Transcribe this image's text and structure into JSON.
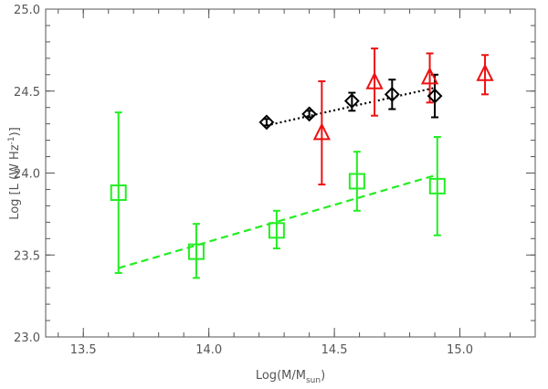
{
  "chart_data": {
    "type": "scatter",
    "title": "",
    "xlabel": "Log(M/M",
    "xlabel_sub": "sun",
    "xlabel_close": ")",
    "ylabel": "Log [L (W Hz",
    "ylabel_sup": "-1",
    "ylabel_close": ")]",
    "xlim": [
      13.35,
      15.3
    ],
    "ylim": [
      23.0,
      25.0
    ],
    "x_ticks": [
      13.5,
      14.0,
      14.5,
      15.0
    ],
    "x_tick_labels": [
      "13.5",
      "14.0",
      "14.5",
      "15.0"
    ],
    "y_ticks": [
      23.0,
      23.5,
      24.0,
      24.5,
      25.0
    ],
    "y_tick_labels": [
      "23.0",
      "23.5",
      "24.0",
      "24.5",
      "25.0"
    ],
    "x_minor_step": 0.1,
    "y_minor_step": 0.1,
    "grid": false,
    "legend": "none",
    "series": [
      {
        "marker": "square",
        "color": "#22ee22",
        "points": [
          {
            "x": 13.64,
            "y": 23.88,
            "ylo": 23.39,
            "yhi": 24.37
          },
          {
            "x": 13.95,
            "y": 23.52,
            "ylo": 23.36,
            "yhi": 23.69
          },
          {
            "x": 14.27,
            "y": 23.65,
            "ylo": 23.54,
            "yhi": 23.77
          },
          {
            "x": 14.59,
            "y": 23.95,
            "ylo": 23.77,
            "yhi": 24.13
          },
          {
            "x": 14.91,
            "y": 23.92,
            "ylo": 23.62,
            "yhi": 24.22
          }
        ],
        "fit": {
          "style": "dashed",
          "x": [
            13.64,
            14.91
          ],
          "y": [
            23.42,
            23.99
          ]
        }
      },
      {
        "marker": "diamond",
        "color": "#000000",
        "points": [
          {
            "x": 14.23,
            "y": 24.31,
            "ylo": 24.29,
            "yhi": 24.33
          },
          {
            "x": 14.4,
            "y": 24.36,
            "ylo": 24.34,
            "yhi": 24.38
          },
          {
            "x": 14.57,
            "y": 24.44,
            "ylo": 24.38,
            "yhi": 24.49
          },
          {
            "x": 14.73,
            "y": 24.48,
            "ylo": 24.39,
            "yhi": 24.57
          },
          {
            "x": 14.9,
            "y": 24.47,
            "ylo": 24.34,
            "yhi": 24.6
          }
        ],
        "fit": {
          "style": "dotted",
          "x": [
            14.23,
            14.9
          ],
          "y": [
            24.29,
            24.52
          ]
        }
      },
      {
        "marker": "triangle",
        "color": "#ee1111",
        "points": [
          {
            "x": 14.45,
            "y": 24.24,
            "ylo": 23.93,
            "yhi": 24.56
          },
          {
            "x": 14.66,
            "y": 24.55,
            "ylo": 24.35,
            "yhi": 24.76
          },
          {
            "x": 14.88,
            "y": 24.58,
            "ylo": 24.43,
            "yhi": 24.73
          },
          {
            "x": 15.1,
            "y": 24.6,
            "ylo": 24.48,
            "yhi": 24.72
          }
        ]
      }
    ]
  }
}
